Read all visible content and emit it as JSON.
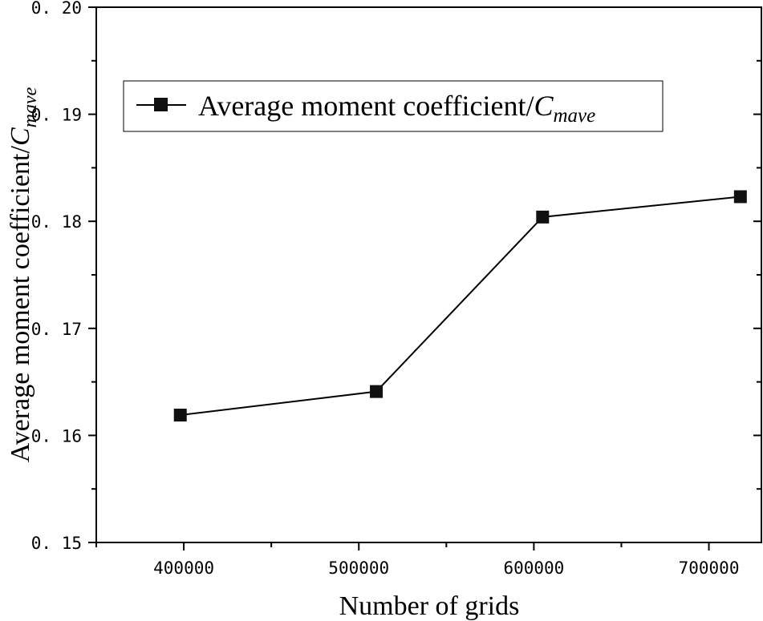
{
  "chart_data": {
    "type": "line",
    "xlabel": "Number of grids",
    "ylabel": "Average moment coefficient/",
    "ylabel_symbol": "C",
    "ylabel_subscript": "mave",
    "xlim": [
      350000,
      730000
    ],
    "ylim": [
      0.15,
      0.2
    ],
    "xticks": [
      400000,
      500000,
      600000,
      700000
    ],
    "xtick_labels": [
      "400000",
      "500000",
      "600000",
      "700000"
    ],
    "yticks": [
      0.15,
      0.16,
      0.17,
      0.18,
      0.19,
      0.2
    ],
    "ytick_labels": [
      "0. 15",
      "0. 16",
      "0. 17",
      "0. 18",
      "0. 19",
      "0. 20"
    ],
    "grid": false,
    "legend_position": "upper-left",
    "series": [
      {
        "name": "Average moment coefficient/",
        "name_symbol": "C",
        "name_subscript": "mave",
        "marker": "square",
        "color": "#000000",
        "x": [
          398000,
          510000,
          605000,
          718000
        ],
        "y": [
          0.1619,
          0.1641,
          0.1804,
          0.1823
        ]
      }
    ]
  }
}
